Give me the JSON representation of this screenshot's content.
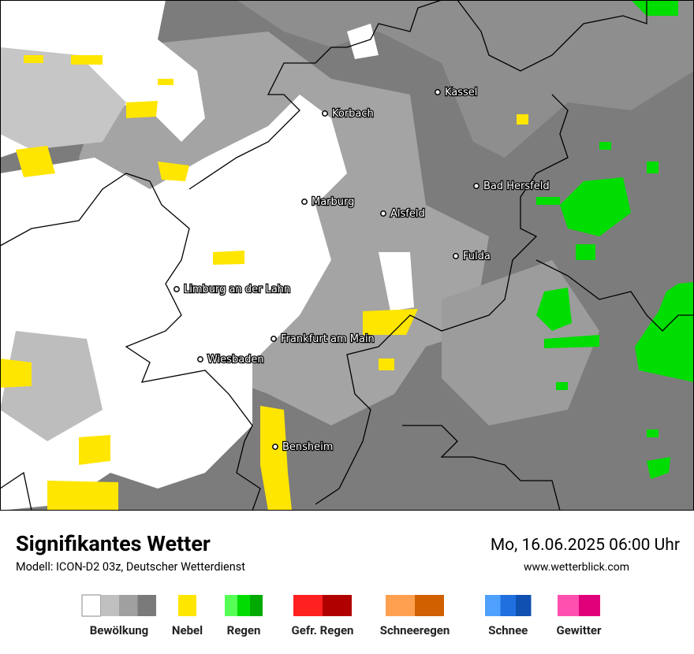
{
  "map": {
    "cities": [
      {
        "label": "Kassel"
      },
      {
        "label": "Korbach"
      },
      {
        "label": "Bad Hersfeld"
      },
      {
        "label": "Marburg"
      },
      {
        "label": "Alsfeld"
      },
      {
        "label": "Fulda"
      },
      {
        "label": "Limburg an der Lahn"
      },
      {
        "label": "Frankfurt am Main"
      },
      {
        "label": "Wiesbaden"
      },
      {
        "label": "Bensheim"
      }
    ]
  },
  "header": {
    "title": "Signifikantes Wetter",
    "model": "Modell: ICON-D2 03z, Deutscher Wetterdienst",
    "date": "Mo, 16.06.2025 06:00 Uhr",
    "website": "www.wetterblick.com"
  },
  "legend": [
    {
      "label": "Bewölkung",
      "colors": [
        "#ffffff",
        "#c0c0c0",
        "#a0a0a0",
        "#7a7a7a"
      ]
    },
    {
      "label": "Nebel",
      "colors": [
        "#ffe600"
      ]
    },
    {
      "label": "Regen",
      "colors": [
        "#55ff55",
        "#00dd00",
        "#00aa00"
      ]
    },
    {
      "label": "Gefr. Regen",
      "colors": [
        "#ff2020",
        "#b00000"
      ]
    },
    {
      "label": "Schneeregen",
      "colors": [
        "#ffa050",
        "#d06000"
      ]
    },
    {
      "label": "Schnee",
      "colors": [
        "#50a0ff",
        "#2070e0",
        "#1050b0"
      ]
    },
    {
      "label": "Gewitter",
      "colors": [
        "#ff50b0",
        "#e0007a"
      ]
    }
  ]
}
